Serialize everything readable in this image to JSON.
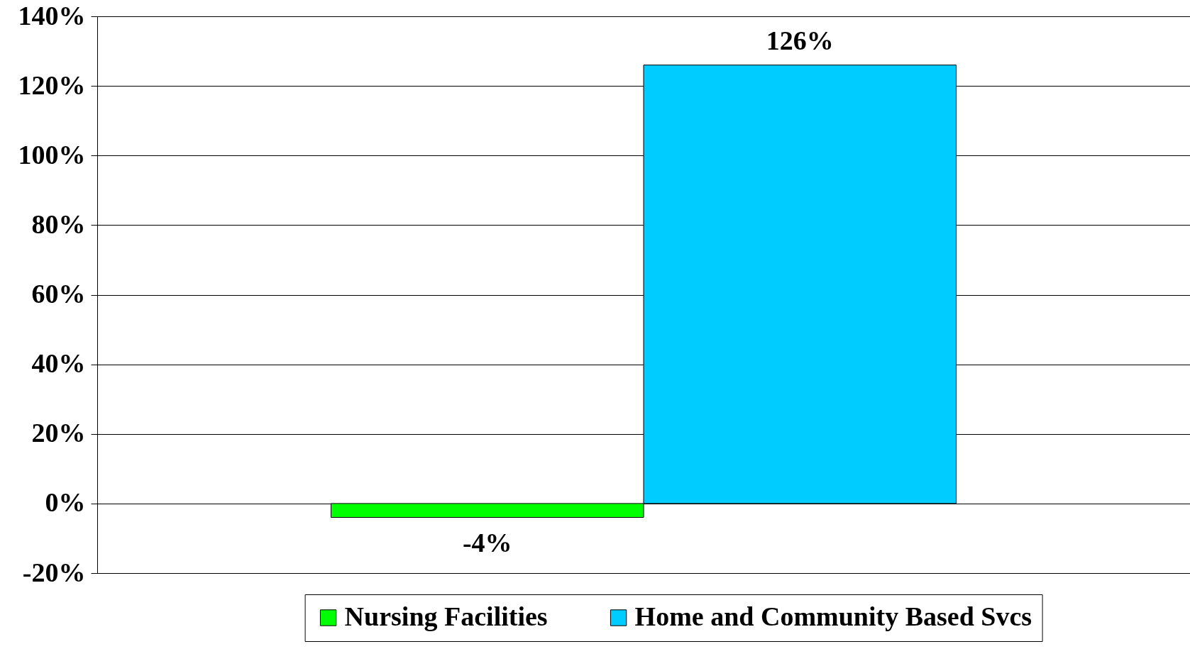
{
  "chart_data": {
    "type": "bar",
    "categories": [
      null
    ],
    "series": [
      {
        "name": "Nursing Facilities",
        "color": "#00ff00",
        "values": [
          -4
        ],
        "value_labels": [
          "-4%"
        ]
      },
      {
        "name": "Home and Community Based Svcs",
        "color": "#00ccff",
        "values": [
          126
        ],
        "value_labels": [
          "126%"
        ]
      }
    ],
    "ylim": [
      -20,
      140
    ],
    "yticks": [
      {
        "value": -20,
        "label": "-20%"
      },
      {
        "value": 0,
        "label": "0%"
      },
      {
        "value": 20,
        "label": "20%"
      },
      {
        "value": 40,
        "label": "40%"
      },
      {
        "value": 60,
        "label": "60%"
      },
      {
        "value": 80,
        "label": "80%"
      },
      {
        "value": 100,
        "label": "100%"
      },
      {
        "value": 120,
        "label": "120%"
      },
      {
        "value": 140,
        "label": "140%"
      }
    ],
    "grid": "y",
    "legend": "bottom",
    "tick_labels": "y"
  }
}
